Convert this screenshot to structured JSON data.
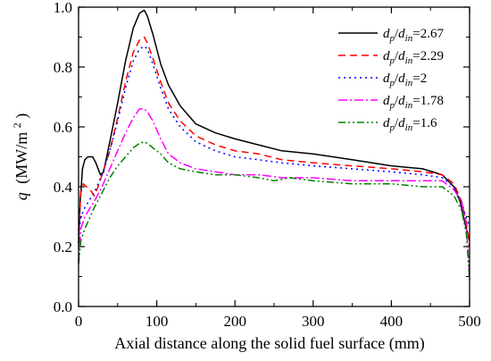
{
  "chart_data": {
    "type": "line",
    "title": "",
    "xlabel": "Axial distance along the solid fuel surface (mm)",
    "ylabel_symbol": "q",
    "ylabel_unit": "(MW/m",
    "ylabel_unit_sup": "2",
    "ylabel_unit_close": ")",
    "xlim": [
      0,
      500
    ],
    "ylim": [
      0,
      1.0
    ],
    "x_ticks": [
      0,
      100,
      200,
      300,
      400,
      500
    ],
    "x_tick_labels": [
      "0",
      "100",
      "200",
      "300",
      "400",
      "500"
    ],
    "y_ticks": [
      0,
      0.2,
      0.4,
      0.6,
      0.8,
      1.0
    ],
    "y_tick_labels": [
      "0.0",
      "0.2",
      "0.4",
      "0.6",
      "0.8",
      "1.0"
    ],
    "grid": false,
    "legend_position": "top-right",
    "series": [
      {
        "legend_var1": "d",
        "legend_sub1": "p",
        "legend_var2": "d",
        "legend_sub2": "in",
        "legend_value": "=2.67",
        "color": "#000000",
        "dash": "",
        "x": [
          0,
          2,
          5,
          8,
          12,
          18,
          22,
          28,
          32,
          40,
          50,
          60,
          70,
          78,
          84,
          88,
          95,
          105,
          115,
          130,
          150,
          175,
          200,
          230,
          260,
          300,
          350,
          400,
          440,
          465,
          480,
          488,
          494,
          498,
          500
        ],
        "y": [
          0.21,
          0.35,
          0.46,
          0.49,
          0.5,
          0.5,
          0.48,
          0.44,
          0.45,
          0.55,
          0.68,
          0.82,
          0.93,
          0.98,
          0.99,
          0.97,
          0.91,
          0.81,
          0.74,
          0.67,
          0.61,
          0.58,
          0.56,
          0.54,
          0.52,
          0.51,
          0.49,
          0.47,
          0.46,
          0.44,
          0.4,
          0.35,
          0.28,
          0.24,
          0.22
        ]
      },
      {
        "legend_var1": "d",
        "legend_sub1": "p",
        "legend_var2": "d",
        "legend_sub2": "in",
        "legend_value": "=2.29",
        "color": "#ff0000",
        "dash": "8,5",
        "x": [
          0,
          3,
          6,
          10,
          15,
          20,
          25,
          30,
          40,
          50,
          60,
          70,
          78,
          84,
          88,
          95,
          105,
          115,
          130,
          150,
          175,
          200,
          230,
          260,
          300,
          350,
          400,
          440,
          465,
          480,
          490,
          496,
          500
        ],
        "y": [
          0.25,
          0.38,
          0.41,
          0.4,
          0.39,
          0.37,
          0.4,
          0.44,
          0.52,
          0.63,
          0.75,
          0.85,
          0.89,
          0.9,
          0.88,
          0.83,
          0.75,
          0.68,
          0.62,
          0.57,
          0.54,
          0.52,
          0.51,
          0.49,
          0.48,
          0.47,
          0.46,
          0.45,
          0.44,
          0.41,
          0.35,
          0.28,
          0.2
        ]
      },
      {
        "legend_var1": "d",
        "legend_sub1": "p",
        "legend_var2": "d",
        "legend_sub2": "in",
        "legend_value": "=2",
        "color": "#0000ff",
        "dash": "2,4",
        "x": [
          0,
          3,
          8,
          15,
          20,
          30,
          40,
          50,
          60,
          70,
          78,
          84,
          88,
          95,
          105,
          115,
          130,
          150,
          175,
          200,
          230,
          260,
          300,
          350,
          400,
          440,
          465,
          480,
          490,
          496,
          500
        ],
        "y": [
          0.24,
          0.3,
          0.33,
          0.36,
          0.38,
          0.44,
          0.52,
          0.62,
          0.73,
          0.82,
          0.86,
          0.87,
          0.86,
          0.81,
          0.73,
          0.66,
          0.6,
          0.55,
          0.52,
          0.5,
          0.49,
          0.48,
          0.47,
          0.46,
          0.45,
          0.44,
          0.43,
          0.4,
          0.35,
          0.29,
          0.27
        ]
      },
      {
        "legend_var1": "d",
        "legend_sub1": "p",
        "legend_var2": "d",
        "legend_sub2": "in",
        "legend_value": "=1.78",
        "color": "#ff00ff",
        "dash": "10,3,2,3",
        "x": [
          0,
          3,
          8,
          15,
          20,
          30,
          40,
          50,
          60,
          70,
          78,
          84,
          88,
          95,
          105,
          115,
          130,
          150,
          175,
          200,
          230,
          260,
          300,
          350,
          400,
          440,
          465,
          480,
          490,
          496,
          500
        ],
        "y": [
          0.15,
          0.26,
          0.3,
          0.33,
          0.35,
          0.4,
          0.46,
          0.52,
          0.58,
          0.63,
          0.66,
          0.66,
          0.65,
          0.62,
          0.56,
          0.51,
          0.48,
          0.46,
          0.45,
          0.44,
          0.44,
          0.43,
          0.43,
          0.42,
          0.42,
          0.42,
          0.42,
          0.39,
          0.35,
          0.27,
          0.1
        ]
      },
      {
        "legend_var1": "d",
        "legend_sub1": "p",
        "legend_var2": "d",
        "legend_sub2": "in",
        "legend_value": "=1.6",
        "color": "#008000",
        "dash": "8,3,2,3,2,3",
        "x": [
          0,
          3,
          8,
          15,
          20,
          30,
          40,
          50,
          60,
          70,
          78,
          84,
          88,
          95,
          105,
          115,
          130,
          150,
          175,
          200,
          230,
          250,
          270,
          300,
          350,
          400,
          440,
          465,
          480,
          490,
          496,
          500
        ],
        "y": [
          0.14,
          0.22,
          0.26,
          0.3,
          0.33,
          0.38,
          0.43,
          0.47,
          0.5,
          0.53,
          0.545,
          0.55,
          0.545,
          0.53,
          0.51,
          0.48,
          0.46,
          0.45,
          0.44,
          0.44,
          0.43,
          0.42,
          0.43,
          0.42,
          0.41,
          0.41,
          0.4,
          0.4,
          0.37,
          0.32,
          0.24,
          0.09
        ]
      }
    ]
  }
}
